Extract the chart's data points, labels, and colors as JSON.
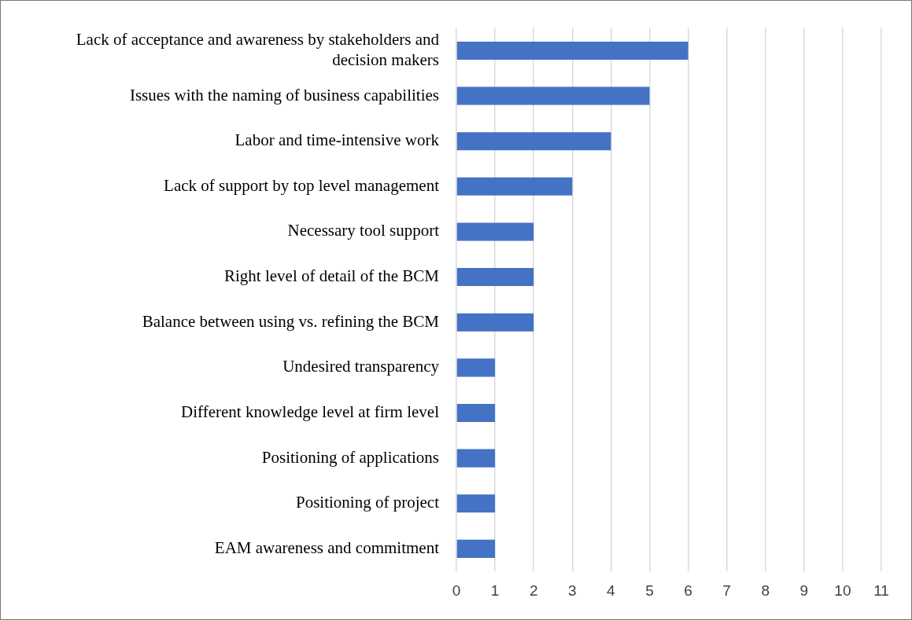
{
  "chart_data": {
    "type": "bar",
    "orientation": "horizontal",
    "categories": [
      "Lack of acceptance and awareness by stakeholders and decision makers",
      "Issues with the naming of business capabilities",
      "Labor and time-intensive work",
      "Lack of support by top level management",
      "Necessary tool support",
      "Right level of detail of the BCM",
      "Balance between using vs. refining the BCM",
      "Undesired transparency",
      "Different knowledge level at firm level",
      "Positioning of applications",
      "Positioning of project",
      "EAM awareness and commitment"
    ],
    "values": [
      6,
      5,
      4,
      3,
      2,
      2,
      2,
      1,
      1,
      1,
      1,
      1
    ],
    "color": "#4472c4",
    "xlim": [
      0,
      11
    ],
    "xticks": [
      0,
      1,
      2,
      3,
      4,
      5,
      6,
      7,
      8,
      9,
      10,
      11
    ],
    "grid": "x",
    "legend": false
  }
}
